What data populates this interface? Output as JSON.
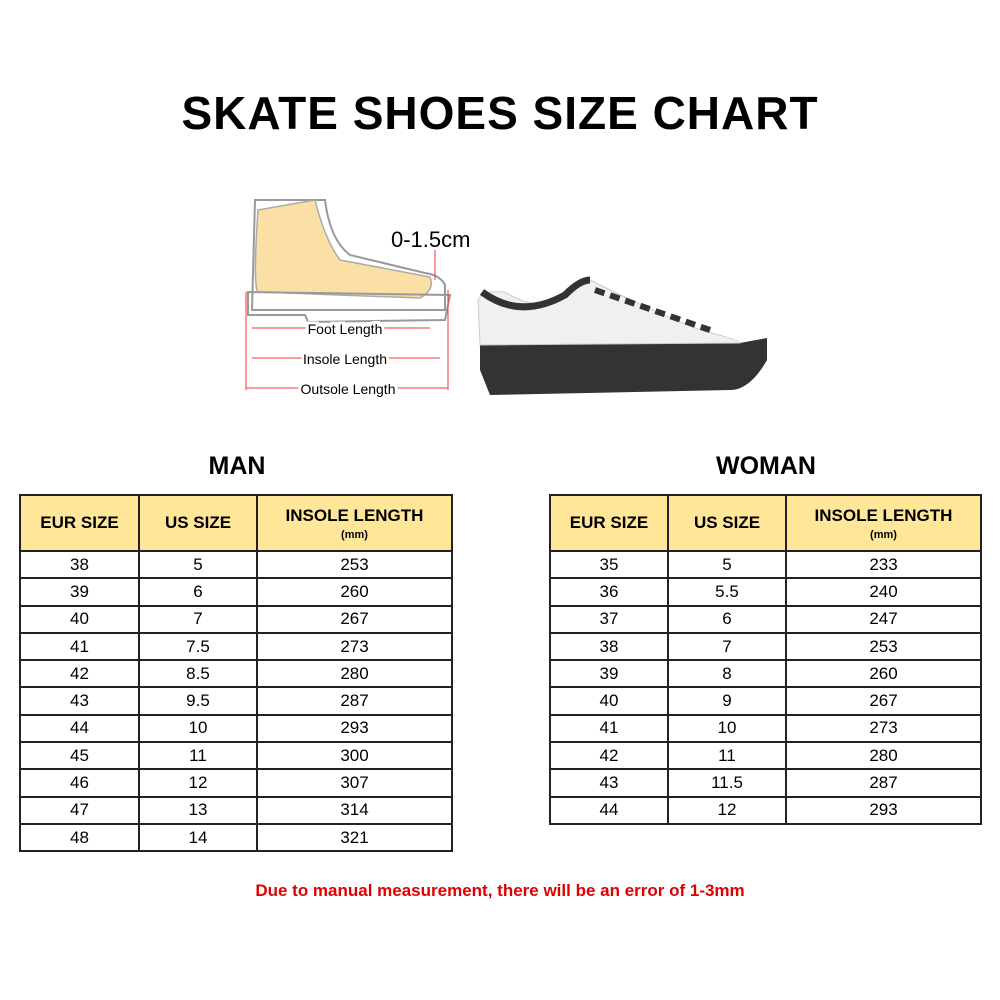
{
  "title": "SKATE SHOES SIZE CHART",
  "diagram": {
    "gap": "0-1.5cm",
    "foot": "Foot Length",
    "insole": "Insole Length",
    "outsole": "Outsole Length"
  },
  "headers": {
    "eur": "EUR SIZE",
    "us": "US SIZE",
    "insole": "INSOLE LENGTH",
    "unit": "(mm)"
  },
  "man": {
    "label": "MAN",
    "rows": [
      [
        "38",
        "5",
        "253"
      ],
      [
        "39",
        "6",
        "260"
      ],
      [
        "40",
        "7",
        "267"
      ],
      [
        "41",
        "7.5",
        "273"
      ],
      [
        "42",
        "8.5",
        "280"
      ],
      [
        "43",
        "9.5",
        "287"
      ],
      [
        "44",
        "10",
        "293"
      ],
      [
        "45",
        "11",
        "300"
      ],
      [
        "46",
        "12",
        "307"
      ],
      [
        "47",
        "13",
        "314"
      ],
      [
        "48",
        "14",
        "321"
      ]
    ]
  },
  "woman": {
    "label": "WOMAN",
    "rows": [
      [
        "35",
        "5",
        "233"
      ],
      [
        "36",
        "5.5",
        "240"
      ],
      [
        "37",
        "6",
        "247"
      ],
      [
        "38",
        "7",
        "253"
      ],
      [
        "39",
        "8",
        "260"
      ],
      [
        "40",
        "9",
        "267"
      ],
      [
        "41",
        "10",
        "273"
      ],
      [
        "42",
        "11",
        "280"
      ],
      [
        "43",
        "11.5",
        "287"
      ],
      [
        "44",
        "12",
        "293"
      ]
    ]
  },
  "note": "Due to manual measurement, there will be an error of 1-3mm",
  "colors": {
    "header_bg": "#ffe699",
    "note": "#e00000"
  }
}
